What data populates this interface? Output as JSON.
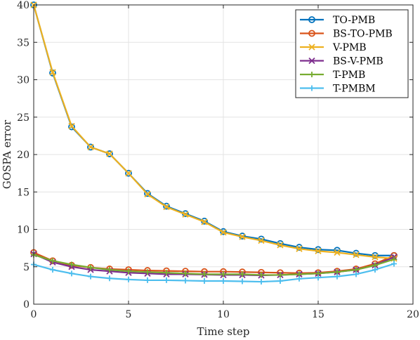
{
  "chart_data": {
    "type": "line",
    "title": "",
    "xlabel": "Time step",
    "ylabel": "GOSPA error",
    "xlim": [
      0,
      20
    ],
    "ylim": [
      0,
      40
    ],
    "xticks": [
      0,
      5,
      10,
      15,
      20
    ],
    "yticks": [
      0,
      5,
      10,
      15,
      20,
      25,
      30,
      35,
      40
    ],
    "grid": true,
    "legend_position": "top-right",
    "x": [
      0,
      1,
      2,
      3,
      4,
      5,
      6,
      7,
      8,
      9,
      10,
      11,
      12,
      13,
      14,
      15,
      16,
      17,
      18,
      19
    ],
    "series": [
      {
        "name": "TO-PMB",
        "color": "#0072BD",
        "marker": "circle",
        "values": [
          40.0,
          30.9,
          23.7,
          21.0,
          20.1,
          17.5,
          14.8,
          13.1,
          12.1,
          11.1,
          9.7,
          9.1,
          8.7,
          8.1,
          7.6,
          7.3,
          7.2,
          6.8,
          6.5,
          6.5
        ]
      },
      {
        "name": "BS-TO-PMB",
        "color": "#D95319",
        "marker": "circle",
        "values": [
          6.9,
          5.8,
          5.2,
          4.9,
          4.7,
          4.6,
          4.5,
          4.45,
          4.4,
          4.35,
          4.35,
          4.3,
          4.25,
          4.2,
          4.15,
          4.2,
          4.4,
          4.7,
          5.4,
          6.5
        ]
      },
      {
        "name": "V-PMB",
        "color": "#EDB120",
        "marker": "x",
        "values": [
          40.0,
          31.0,
          23.8,
          21.0,
          20.1,
          17.5,
          14.7,
          13.0,
          12.0,
          11.0,
          9.6,
          9.0,
          8.5,
          7.9,
          7.4,
          7.1,
          6.9,
          6.6,
          6.3,
          6.1
        ]
      },
      {
        "name": "BS-V-PMB",
        "color": "#7E2F8E",
        "marker": "x",
        "values": [
          6.7,
          5.6,
          5.0,
          4.6,
          4.4,
          4.2,
          4.1,
          4.0,
          4.0,
          3.95,
          3.9,
          3.9,
          3.85,
          3.9,
          4.0,
          4.1,
          4.3,
          4.6,
          5.2,
          6.3
        ]
      },
      {
        "name": "T-PMB",
        "color": "#77AC30",
        "marker": "plus",
        "values": [
          6.6,
          5.8,
          5.3,
          4.9,
          4.6,
          4.4,
          4.3,
          4.2,
          4.1,
          4.0,
          4.0,
          4.0,
          3.9,
          3.9,
          4.0,
          4.1,
          4.3,
          4.6,
          5.2,
          6.0
        ]
      },
      {
        "name": "T-PMBM",
        "color": "#4DBEEE",
        "marker": "plus",
        "values": [
          5.3,
          4.6,
          4.1,
          3.7,
          3.45,
          3.3,
          3.2,
          3.2,
          3.15,
          3.1,
          3.1,
          3.05,
          3.0,
          3.1,
          3.4,
          3.55,
          3.7,
          4.0,
          4.6,
          5.4
        ]
      }
    ]
  }
}
